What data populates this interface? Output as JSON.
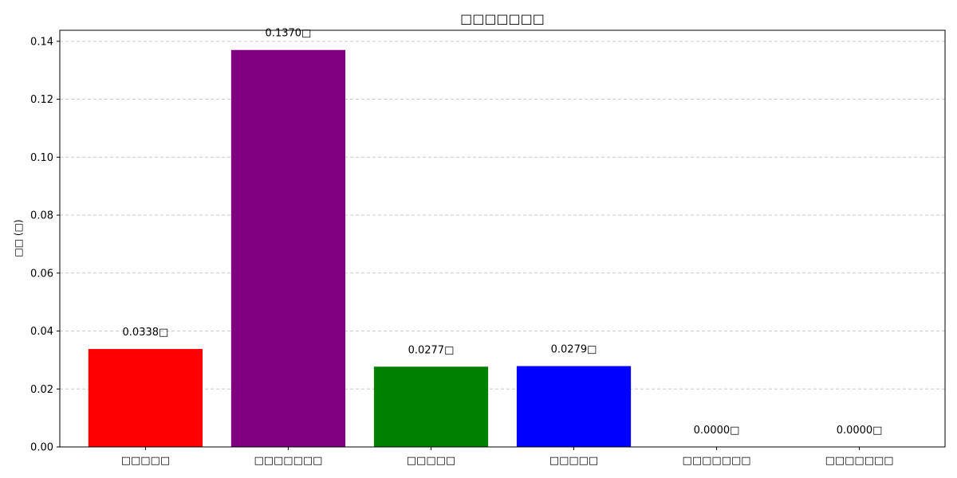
{
  "chart_data": {
    "type": "bar",
    "title": "□□□□□□□",
    "ylabel": "□□ (□)",
    "xlabel": "",
    "categories": [
      "□□□□□",
      "□□□□□□□",
      "□□□□□",
      "□□□□□",
      "□□□□□□□",
      "□□□□□□□"
    ],
    "values": [
      0.0338,
      0.137,
      0.0277,
      0.0279,
      0.0,
      0.0
    ],
    "data_labels": [
      "0.0338□",
      "0.1370□",
      "0.0277□",
      "0.0279□",
      "0.0000□",
      "0.0000□"
    ],
    "colors": [
      "#ff0000",
      "#800080",
      "#008000",
      "#0000ff",
      "#808080",
      "#808080"
    ],
    "ylim": [
      0,
      0.1438
    ],
    "yticks": [
      0.0,
      0.02,
      0.04,
      0.06,
      0.08,
      0.1,
      0.12,
      0.14
    ],
    "ytick_labels": [
      "0.00",
      "0.02",
      "0.04",
      "0.06",
      "0.08",
      "0.10",
      "0.12",
      "0.14"
    ],
    "grid": "y-dashed",
    "grid_color": "#c8c8c8"
  }
}
